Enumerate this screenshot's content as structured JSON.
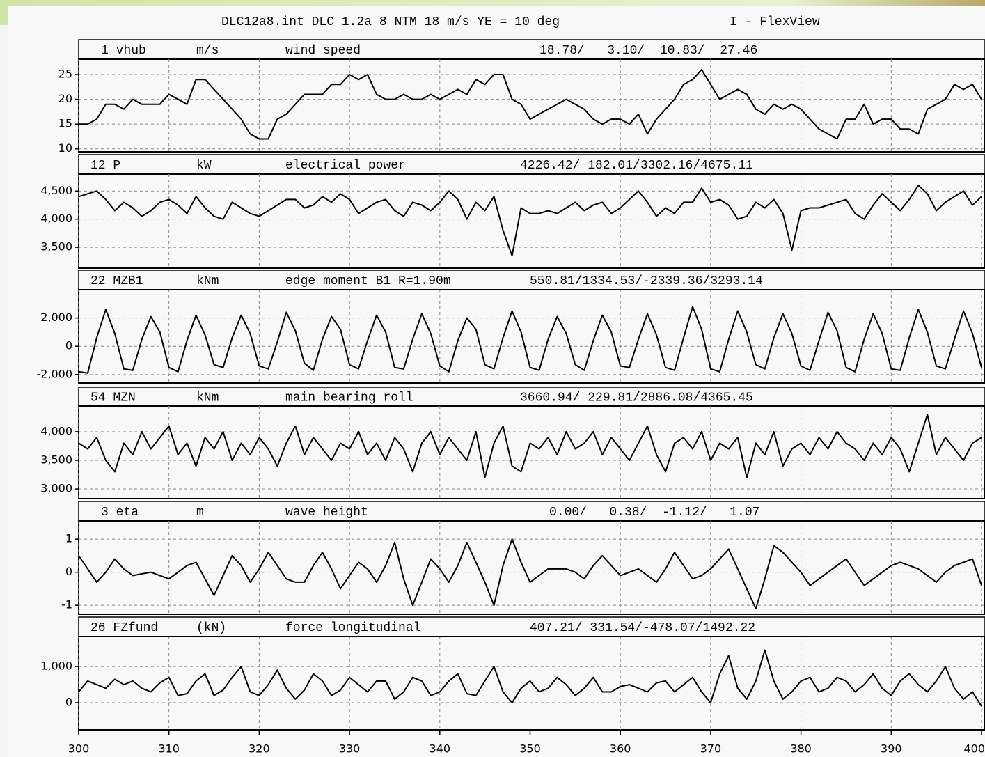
{
  "chart_data": {
    "type": "line",
    "title": "DLC12a8.int DLC 1.2a_8 NTM 18 m/s YE = 10 deg",
    "title_right": "I - FlexView",
    "color": "#000000",
    "grid": true,
    "x": [
      300,
      301,
      302,
      303,
      304,
      305,
      306,
      307,
      308,
      309,
      310,
      311,
      312,
      313,
      314,
      315,
      316,
      317,
      318,
      319,
      320,
      321,
      322,
      323,
      324,
      325,
      326,
      327,
      328,
      329,
      330,
      331,
      332,
      333,
      334,
      335,
      336,
      337,
      338,
      339,
      340,
      341,
      342,
      343,
      344,
      345,
      346,
      347,
      348,
      349,
      350,
      351,
      352,
      353,
      354,
      355,
      356,
      357,
      358,
      359,
      360,
      361,
      362,
      363,
      364,
      365,
      366,
      367,
      368,
      369,
      370,
      371,
      372,
      373,
      374,
      375,
      376,
      377,
      378,
      379,
      380,
      381,
      382,
      383,
      384,
      385,
      386,
      387,
      388,
      389,
      390,
      391,
      392,
      393,
      394,
      395,
      396,
      397,
      398,
      399,
      400
    ],
    "xlim": [
      300,
      400
    ],
    "xticks": [
      300,
      310,
      320,
      330,
      340,
      350,
      360,
      370,
      380,
      390,
      400
    ],
    "panels": [
      {
        "channel": "1 vhub",
        "unit": "m/s",
        "name": "wind speed",
        "stats": "18.78/   3.10/  10.83/  27.46",
        "ylim": [
          9.4,
          28.1
        ],
        "yticks": [
          10,
          15,
          20,
          25
        ],
        "values": [
          15,
          15,
          16,
          19,
          19,
          18,
          20,
          19,
          19,
          19,
          21,
          20,
          19,
          24,
          24,
          22,
          20,
          18,
          16,
          13,
          12,
          12,
          16,
          17,
          19,
          21,
          21,
          21,
          23,
          23,
          25,
          24,
          25,
          21,
          20,
          20,
          21,
          20,
          20,
          21,
          20,
          21,
          22,
          21,
          24,
          23,
          25,
          25,
          20,
          19,
          16,
          17,
          18,
          19,
          20,
          19,
          18,
          16,
          15,
          16,
          16,
          15,
          17,
          13,
          16,
          18,
          20,
          23,
          24,
          26,
          23,
          20,
          21,
          22,
          21,
          18,
          17,
          19,
          18,
          19,
          18,
          16,
          14,
          13,
          12,
          16,
          16,
          19,
          15,
          16,
          16,
          14,
          14,
          13,
          18,
          19,
          20,
          23,
          22,
          23,
          20
        ]
      },
      {
        "channel": "12 P",
        "unit": "kW",
        "name": "electrical power",
        "stats": "4226.42/ 182.01/3302.16/4675.11",
        "ylim": [
          3130,
          4800
        ],
        "yticks": [
          {
            "value": 3500,
            "label": "3,500"
          },
          {
            "value": 4000,
            "label": "4,000"
          },
          {
            "value": 4500,
            "label": "4,500"
          }
        ],
        "values": [
          4400,
          4450,
          4500,
          4350,
          4150,
          4300,
          4200,
          4050,
          4150,
          4300,
          4350,
          4250,
          4100,
          4400,
          4200,
          4050,
          4000,
          4300,
          4200,
          4100,
          4050,
          4150,
          4250,
          4350,
          4350,
          4200,
          4250,
          4400,
          4300,
          4450,
          4350,
          4100,
          4200,
          4300,
          4350,
          4150,
          4050,
          4300,
          4250,
          4150,
          4300,
          4500,
          4350,
          4000,
          4300,
          4150,
          4400,
          3800,
          3350,
          4200,
          4100,
          4100,
          4150,
          4100,
          4200,
          4300,
          4150,
          4250,
          4300,
          4100,
          4200,
          4350,
          4500,
          4300,
          4050,
          4200,
          4100,
          4300,
          4300,
          4550,
          4300,
          4350,
          4250,
          4000,
          4050,
          4300,
          4200,
          4350,
          4100,
          3450,
          4150,
          4200,
          4200,
          4250,
          4300,
          4350,
          4100,
          4000,
          4250,
          4450,
          4300,
          4150,
          4350,
          4600,
          4450,
          4150,
          4300,
          4400,
          4500,
          4250,
          4400
        ]
      },
      {
        "channel": "22 MZB1",
        "unit": "kNm",
        "name": "edge moment B1 R=1.90m",
        "stats": "550.81/1334.53/-2339.36/3293.14",
        "ylim": [
          -2600,
          4000
        ],
        "yticks": [
          {
            "value": -2000,
            "label": "-2,000"
          },
          0,
          {
            "value": 2000,
            "label": "2,000"
          }
        ],
        "values": [
          -1800,
          -1900,
          600,
          2600,
          900,
          -1600,
          -1700,
          500,
          2100,
          1000,
          -1500,
          -1800,
          400,
          2200,
          800,
          -1300,
          -1500,
          600,
          2200,
          900,
          -1400,
          -1600,
          300,
          2400,
          1100,
          -1200,
          -1700,
          500,
          2100,
          1200,
          -1300,
          -1600,
          400,
          2200,
          1000,
          -1500,
          -1600,
          500,
          2300,
          900,
          -1400,
          -1800,
          400,
          2000,
          1200,
          -1300,
          -1600,
          600,
          2500,
          1000,
          -1500,
          -1700,
          500,
          2100,
          900,
          -1300,
          -1700,
          400,
          2200,
          1000,
          -1400,
          -1500,
          500,
          2300,
          800,
          -1500,
          -1700,
          600,
          2800,
          1200,
          -1600,
          -1800,
          500,
          2500,
          1000,
          -1300,
          -1600,
          600,
          2300,
          900,
          -1400,
          -1700,
          400,
          2400,
          1100,
          -1500,
          -1800,
          500,
          2300,
          900,
          -1600,
          -1700,
          600,
          2600,
          1000,
          -1400,
          -1600,
          500,
          2500,
          900,
          -1500
        ]
      },
      {
        "channel": "54 MZN",
        "unit": "kNm",
        "name": "main bearing roll",
        "stats": "3660.94/ 229.81/2886.08/4365.45",
        "ylim": [
          2830,
          4450
        ],
        "yticks": [
          {
            "value": 3000,
            "label": "3,000"
          },
          {
            "value": 3500,
            "label": "3,500"
          },
          {
            "value": 4000,
            "label": "4,000"
          }
        ],
        "values": [
          3800,
          3700,
          3900,
          3500,
          3300,
          3800,
          3600,
          4000,
          3700,
          3900,
          4100,
          3600,
          3800,
          3400,
          3900,
          3700,
          4000,
          3500,
          3800,
          3600,
          3900,
          3700,
          3400,
          3800,
          4100,
          3600,
          3900,
          3700,
          3500,
          3800,
          3700,
          4000,
          3600,
          3800,
          3500,
          3900,
          3700,
          3300,
          3800,
          4000,
          3600,
          3900,
          3700,
          3500,
          4000,
          3200,
          3800,
          4100,
          3400,
          3300,
          3800,
          3700,
          3900,
          3600,
          4000,
          3700,
          3800,
          4000,
          3600,
          3900,
          3700,
          3500,
          3800,
          4100,
          3600,
          3300,
          3800,
          3900,
          3700,
          4000,
          3500,
          3800,
          3700,
          3900,
          3200,
          3800,
          3600,
          4000,
          3400,
          3700,
          3800,
          3600,
          3900,
          3700,
          4000,
          3800,
          3700,
          3500,
          3800,
          3600,
          3900,
          3700,
          3300,
          3800,
          4300,
          3600,
          3900,
          3700,
          3500,
          3800,
          3900
        ]
      },
      {
        "channel": "3 eta",
        "unit": "m",
        "name": "wave height",
        "stats": "0.00/   0.38/  -1.12/   1.07",
        "ylim": [
          -1.27,
          1.55
        ],
        "yticks": [
          -1,
          0,
          1
        ],
        "values": [
          0.5,
          0.1,
          -0.3,
          0.0,
          0.4,
          0.1,
          -0.1,
          -0.05,
          0.0,
          -0.1,
          -0.2,
          0.0,
          0.2,
          0.3,
          -0.2,
          -0.7,
          -0.1,
          0.5,
          0.2,
          -0.3,
          0.1,
          0.6,
          0.2,
          -0.2,
          -0.3,
          -0.3,
          0.2,
          0.6,
          0.1,
          -0.5,
          -0.1,
          0.3,
          0.1,
          -0.3,
          0.2,
          0.9,
          -0.2,
          -1.0,
          -0.3,
          0.4,
          0.1,
          -0.3,
          0.2,
          0.9,
          0.3,
          -0.3,
          -1.0,
          0.2,
          1.0,
          0.3,
          -0.3,
          -0.1,
          0.1,
          0.1,
          0.1,
          0.0,
          -0.2,
          0.2,
          0.5,
          0.2,
          -0.1,
          0.0,
          0.1,
          -0.1,
          -0.3,
          0.1,
          0.6,
          0.2,
          -0.2,
          -0.1,
          0.1,
          0.4,
          0.7,
          0.1,
          -0.5,
          -1.1,
          -0.2,
          0.8,
          0.6,
          0.3,
          0.0,
          -0.4,
          -0.2,
          0.0,
          0.2,
          0.4,
          0.0,
          -0.4,
          -0.2,
          0.0,
          0.2,
          0.3,
          0.2,
          0.1,
          -0.1,
          -0.3,
          0.0,
          0.2,
          0.3,
          0.4,
          -0.4
        ]
      },
      {
        "channel": "26 FZfund",
        "unit": "(kN)",
        "name": "force longitudinal",
        "stats": "407.21/ 331.54/-478.07/1492.22",
        "ylim": [
          -750,
          1830
        ],
        "yticks": [
          0,
          {
            "value": 1000,
            "label": "1,000"
          }
        ],
        "values": [
          300,
          600,
          500,
          400,
          650,
          500,
          600,
          400,
          300,
          550,
          700,
          200,
          250,
          600,
          800,
          200,
          350,
          700,
          1000,
          300,
          200,
          500,
          900,
          400,
          100,
          350,
          800,
          600,
          200,
          350,
          700,
          500,
          300,
          600,
          600,
          100,
          300,
          700,
          600,
          200,
          300,
          600,
          800,
          250,
          200,
          600,
          1000,
          300,
          0,
          400,
          600,
          300,
          400,
          700,
          500,
          200,
          400,
          700,
          300,
          300,
          450,
          500,
          400,
          300,
          550,
          600,
          300,
          500,
          700,
          300,
          0,
          800,
          1300,
          400,
          100,
          600,
          1450,
          600,
          100,
          300,
          600,
          700,
          300,
          400,
          700,
          600,
          300,
          500,
          800,
          400,
          200,
          600,
          800,
          500,
          300,
          600,
          1000,
          400,
          100,
          300,
          -100
        ]
      }
    ]
  }
}
